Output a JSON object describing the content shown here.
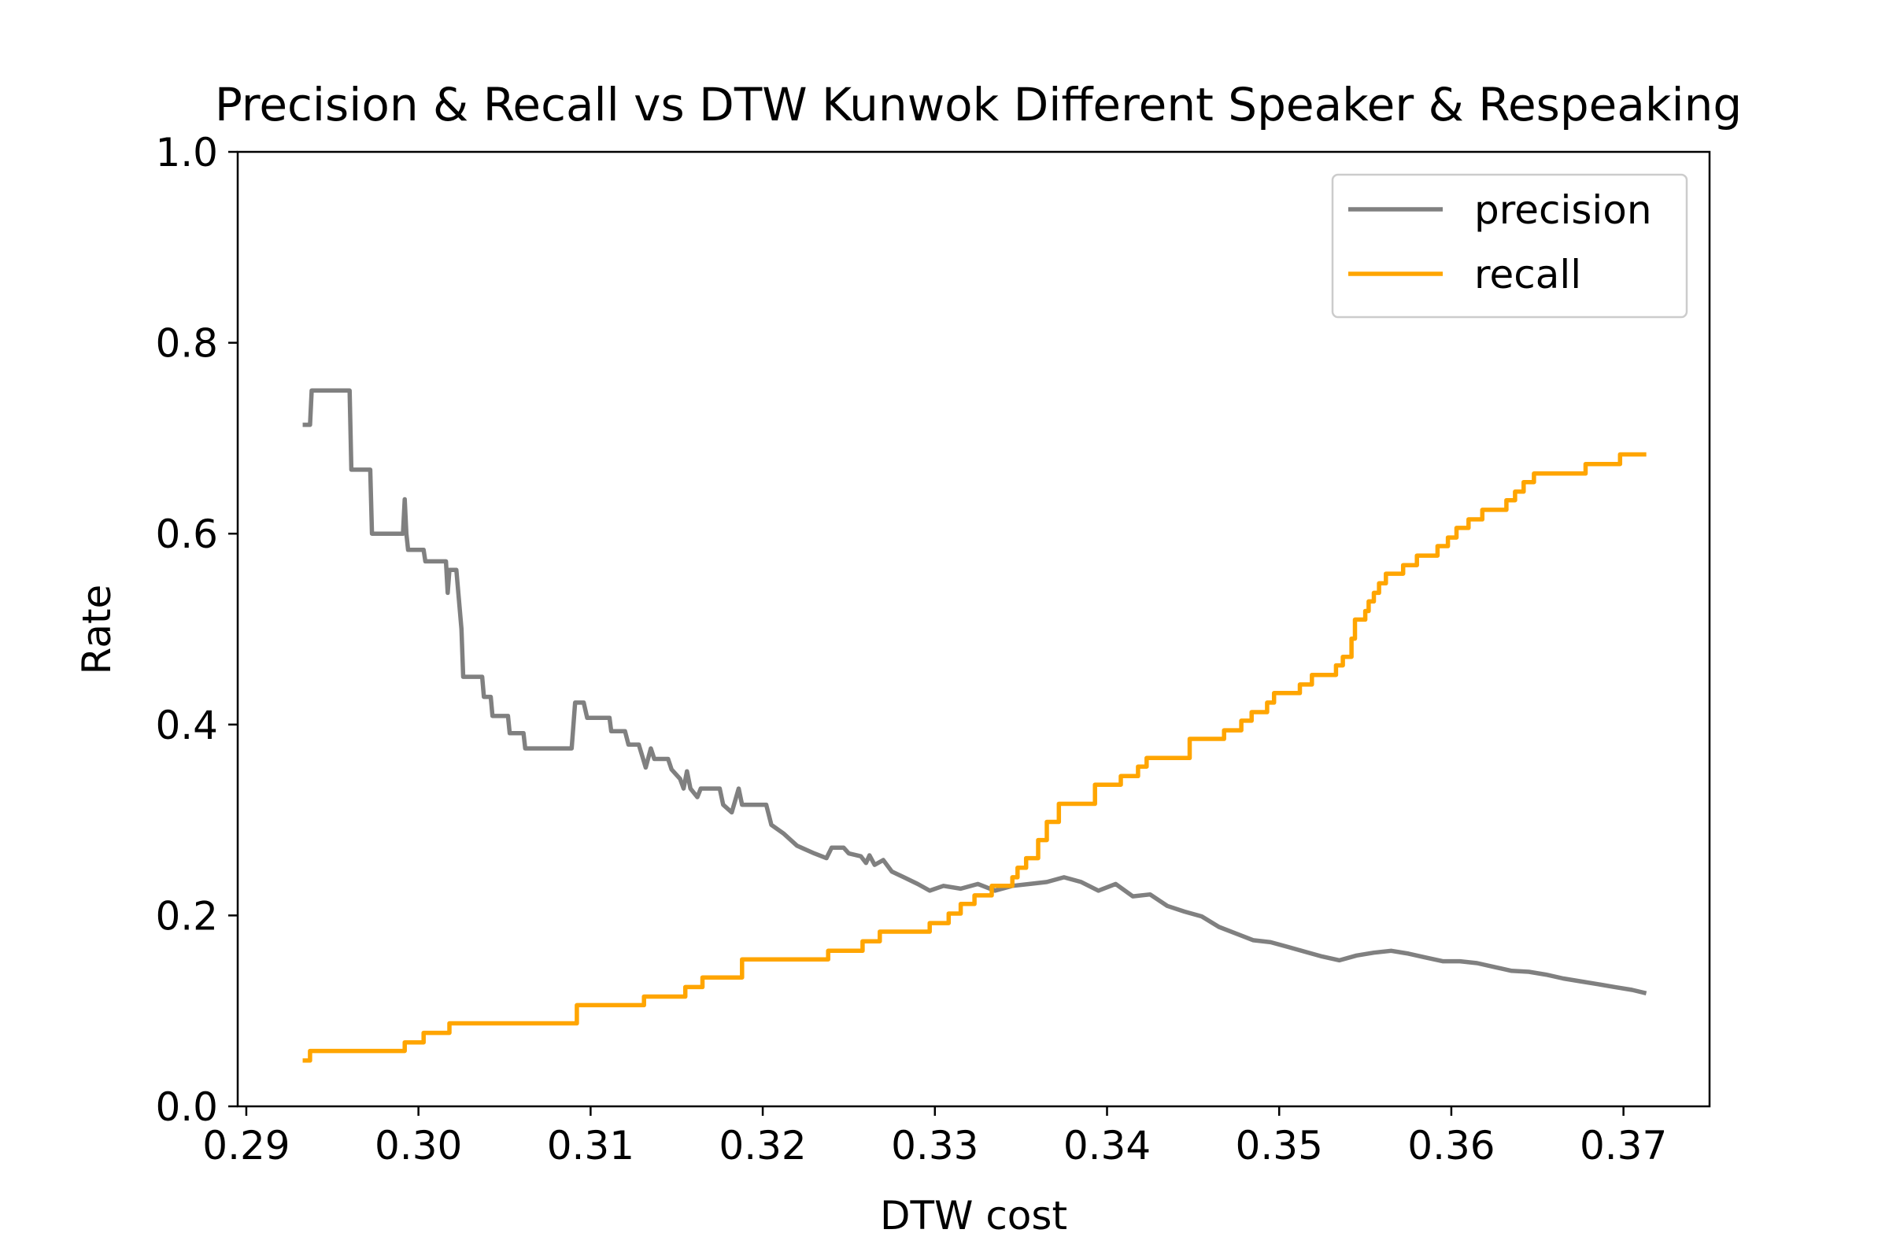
{
  "chart_data": {
    "type": "line",
    "title": "Precision & Recall vs DTW Kunwok Different Speaker & Respeaking",
    "xlabel": "DTW cost",
    "ylabel": "Rate",
    "xlim": [
      0.2895,
      0.375
    ],
    "ylim": [
      0.0,
      1.0
    ],
    "xticks": [
      0.29,
      0.3,
      0.31,
      0.32,
      0.33,
      0.34,
      0.35,
      0.36,
      0.37
    ],
    "xtick_labels": [
      "0.29",
      "0.30",
      "0.31",
      "0.32",
      "0.33",
      "0.34",
      "0.35",
      "0.36",
      "0.37"
    ],
    "yticks": [
      0.0,
      0.2,
      0.4,
      0.6,
      0.8,
      1.0
    ],
    "ytick_labels": [
      "0.0",
      "0.2",
      "0.4",
      "0.6",
      "0.8",
      "1.0"
    ],
    "grid": false,
    "legend": {
      "position": "upper-right"
    },
    "series": [
      {
        "name": "precision",
        "color": "#808080",
        "points": [
          [
            0.2934,
            0.714
          ],
          [
            0.2937,
            0.714
          ],
          [
            0.2938,
            0.75
          ],
          [
            0.296,
            0.75
          ],
          [
            0.2961,
            0.667
          ],
          [
            0.2972,
            0.667
          ],
          [
            0.2973,
            0.6
          ],
          [
            0.2991,
            0.6
          ],
          [
            0.2992,
            0.636
          ],
          [
            0.2993,
            0.6
          ],
          [
            0.2994,
            0.583
          ],
          [
            0.3003,
            0.583
          ],
          [
            0.3004,
            0.571
          ],
          [
            0.3016,
            0.571
          ],
          [
            0.3017,
            0.538
          ],
          [
            0.3018,
            0.562
          ],
          [
            0.3022,
            0.562
          ],
          [
            0.3025,
            0.5
          ],
          [
            0.3026,
            0.45
          ],
          [
            0.3037,
            0.45
          ],
          [
            0.3038,
            0.429
          ],
          [
            0.3042,
            0.429
          ],
          [
            0.3043,
            0.409
          ],
          [
            0.3052,
            0.409
          ],
          [
            0.3053,
            0.391
          ],
          [
            0.3061,
            0.391
          ],
          [
            0.3062,
            0.375
          ],
          [
            0.3089,
            0.375
          ],
          [
            0.3091,
            0.423
          ],
          [
            0.3096,
            0.423
          ],
          [
            0.3098,
            0.407
          ],
          [
            0.3111,
            0.407
          ],
          [
            0.3112,
            0.393
          ],
          [
            0.312,
            0.393
          ],
          [
            0.3122,
            0.379
          ],
          [
            0.3128,
            0.379
          ],
          [
            0.313,
            0.367
          ],
          [
            0.3132,
            0.355
          ],
          [
            0.3135,
            0.375
          ],
          [
            0.3137,
            0.364
          ],
          [
            0.3145,
            0.364
          ],
          [
            0.3147,
            0.353
          ],
          [
            0.3152,
            0.343
          ],
          [
            0.3154,
            0.333
          ],
          [
            0.3156,
            0.351
          ],
          [
            0.3158,
            0.333
          ],
          [
            0.3162,
            0.324
          ],
          [
            0.3164,
            0.333
          ],
          [
            0.3175,
            0.333
          ],
          [
            0.3177,
            0.316
          ],
          [
            0.3182,
            0.308
          ],
          [
            0.3186,
            0.333
          ],
          [
            0.3188,
            0.316
          ],
          [
            0.3202,
            0.316
          ],
          [
            0.3205,
            0.295
          ],
          [
            0.3212,
            0.286
          ],
          [
            0.322,
            0.273
          ],
          [
            0.323,
            0.265
          ],
          [
            0.3237,
            0.26
          ],
          [
            0.324,
            0.271
          ],
          [
            0.3247,
            0.271
          ],
          [
            0.325,
            0.265
          ],
          [
            0.3257,
            0.262
          ],
          [
            0.326,
            0.255
          ],
          [
            0.3262,
            0.263
          ],
          [
            0.3265,
            0.253
          ],
          [
            0.327,
            0.258
          ],
          [
            0.3275,
            0.246
          ],
          [
            0.3282,
            0.24
          ],
          [
            0.329,
            0.233
          ],
          [
            0.3297,
            0.226
          ],
          [
            0.3305,
            0.231
          ],
          [
            0.3315,
            0.228
          ],
          [
            0.3325,
            0.233
          ],
          [
            0.3335,
            0.226
          ],
          [
            0.3345,
            0.231
          ],
          [
            0.3355,
            0.233
          ],
          [
            0.3365,
            0.235
          ],
          [
            0.3375,
            0.24
          ],
          [
            0.3385,
            0.235
          ],
          [
            0.3395,
            0.226
          ],
          [
            0.3405,
            0.233
          ],
          [
            0.3415,
            0.22
          ],
          [
            0.3425,
            0.222
          ],
          [
            0.3435,
            0.21
          ],
          [
            0.3445,
            0.204
          ],
          [
            0.3455,
            0.199
          ],
          [
            0.3465,
            0.188
          ],
          [
            0.3475,
            0.181
          ],
          [
            0.3485,
            0.174
          ],
          [
            0.3495,
            0.172
          ],
          [
            0.3505,
            0.167
          ],
          [
            0.3515,
            0.162
          ],
          [
            0.3525,
            0.157
          ],
          [
            0.3535,
            0.153
          ],
          [
            0.3545,
            0.158
          ],
          [
            0.3555,
            0.161
          ],
          [
            0.3565,
            0.163
          ],
          [
            0.3575,
            0.16
          ],
          [
            0.3585,
            0.156
          ],
          [
            0.3595,
            0.152
          ],
          [
            0.3605,
            0.152
          ],
          [
            0.3615,
            0.15
          ],
          [
            0.3625,
            0.146
          ],
          [
            0.3635,
            0.142
          ],
          [
            0.3645,
            0.141
          ],
          [
            0.3655,
            0.138
          ],
          [
            0.3665,
            0.134
          ],
          [
            0.3675,
            0.131
          ],
          [
            0.3685,
            0.128
          ],
          [
            0.3695,
            0.125
          ],
          [
            0.3705,
            0.122
          ],
          [
            0.3712,
            0.119
          ]
        ]
      },
      {
        "name": "recall",
        "color": "#ffa500",
        "points": [
          [
            0.2934,
            0.048
          ],
          [
            0.2937,
            0.048
          ],
          [
            0.2937,
            0.058
          ],
          [
            0.2992,
            0.058
          ],
          [
            0.2992,
            0.067
          ],
          [
            0.3003,
            0.067
          ],
          [
            0.3003,
            0.077
          ],
          [
            0.3018,
            0.077
          ],
          [
            0.3018,
            0.087
          ],
          [
            0.3092,
            0.087
          ],
          [
            0.3092,
            0.106
          ],
          [
            0.3131,
            0.106
          ],
          [
            0.3131,
            0.115
          ],
          [
            0.3155,
            0.115
          ],
          [
            0.3155,
            0.125
          ],
          [
            0.3165,
            0.125
          ],
          [
            0.3165,
            0.135
          ],
          [
            0.3188,
            0.135
          ],
          [
            0.3188,
            0.154
          ],
          [
            0.3238,
            0.154
          ],
          [
            0.3238,
            0.163
          ],
          [
            0.3258,
            0.163
          ],
          [
            0.3258,
            0.173
          ],
          [
            0.3268,
            0.173
          ],
          [
            0.3268,
            0.183
          ],
          [
            0.3297,
            0.183
          ],
          [
            0.3297,
            0.192
          ],
          [
            0.3308,
            0.192
          ],
          [
            0.3308,
            0.202
          ],
          [
            0.3315,
            0.202
          ],
          [
            0.3315,
            0.212
          ],
          [
            0.3323,
            0.212
          ],
          [
            0.3323,
            0.221
          ],
          [
            0.3333,
            0.221
          ],
          [
            0.3333,
            0.231
          ],
          [
            0.3345,
            0.231
          ],
          [
            0.3345,
            0.24
          ],
          [
            0.3348,
            0.24
          ],
          [
            0.3348,
            0.25
          ],
          [
            0.3353,
            0.25
          ],
          [
            0.3353,
            0.26
          ],
          [
            0.336,
            0.26
          ],
          [
            0.336,
            0.279
          ],
          [
            0.3365,
            0.279
          ],
          [
            0.3365,
            0.298
          ],
          [
            0.3372,
            0.298
          ],
          [
            0.3372,
            0.317
          ],
          [
            0.3393,
            0.317
          ],
          [
            0.3393,
            0.337
          ],
          [
            0.3408,
            0.337
          ],
          [
            0.3408,
            0.346
          ],
          [
            0.3418,
            0.346
          ],
          [
            0.3418,
            0.356
          ],
          [
            0.3423,
            0.356
          ],
          [
            0.3423,
            0.365
          ],
          [
            0.3448,
            0.365
          ],
          [
            0.3448,
            0.385
          ],
          [
            0.3468,
            0.385
          ],
          [
            0.3468,
            0.394
          ],
          [
            0.3478,
            0.394
          ],
          [
            0.3478,
            0.404
          ],
          [
            0.3484,
            0.404
          ],
          [
            0.3484,
            0.413
          ],
          [
            0.3493,
            0.413
          ],
          [
            0.3493,
            0.423
          ],
          [
            0.3497,
            0.423
          ],
          [
            0.3497,
            0.433
          ],
          [
            0.3512,
            0.433
          ],
          [
            0.3512,
            0.442
          ],
          [
            0.3519,
            0.442
          ],
          [
            0.3519,
            0.452
          ],
          [
            0.3533,
            0.452
          ],
          [
            0.3533,
            0.462
          ],
          [
            0.3537,
            0.462
          ],
          [
            0.3537,
            0.471
          ],
          [
            0.3542,
            0.471
          ],
          [
            0.3542,
            0.49
          ],
          [
            0.3544,
            0.49
          ],
          [
            0.3544,
            0.51
          ],
          [
            0.355,
            0.51
          ],
          [
            0.355,
            0.519
          ],
          [
            0.3552,
            0.519
          ],
          [
            0.3552,
            0.529
          ],
          [
            0.3555,
            0.529
          ],
          [
            0.3555,
            0.538
          ],
          [
            0.3558,
            0.538
          ],
          [
            0.3558,
            0.548
          ],
          [
            0.3562,
            0.548
          ],
          [
            0.3562,
            0.558
          ],
          [
            0.3572,
            0.558
          ],
          [
            0.3572,
            0.567
          ],
          [
            0.358,
            0.567
          ],
          [
            0.358,
            0.577
          ],
          [
            0.3592,
            0.577
          ],
          [
            0.3592,
            0.587
          ],
          [
            0.3598,
            0.587
          ],
          [
            0.3598,
            0.596
          ],
          [
            0.3603,
            0.596
          ],
          [
            0.3603,
            0.606
          ],
          [
            0.361,
            0.606
          ],
          [
            0.361,
            0.615
          ],
          [
            0.3618,
            0.615
          ],
          [
            0.3618,
            0.625
          ],
          [
            0.3632,
            0.625
          ],
          [
            0.3632,
            0.635
          ],
          [
            0.3637,
            0.635
          ],
          [
            0.3637,
            0.644
          ],
          [
            0.3642,
            0.644
          ],
          [
            0.3642,
            0.654
          ],
          [
            0.3648,
            0.654
          ],
          [
            0.3648,
            0.663
          ],
          [
            0.3678,
            0.663
          ],
          [
            0.3678,
            0.673
          ],
          [
            0.3698,
            0.673
          ],
          [
            0.3698,
            0.683
          ],
          [
            0.3712,
            0.683
          ]
        ]
      }
    ]
  }
}
